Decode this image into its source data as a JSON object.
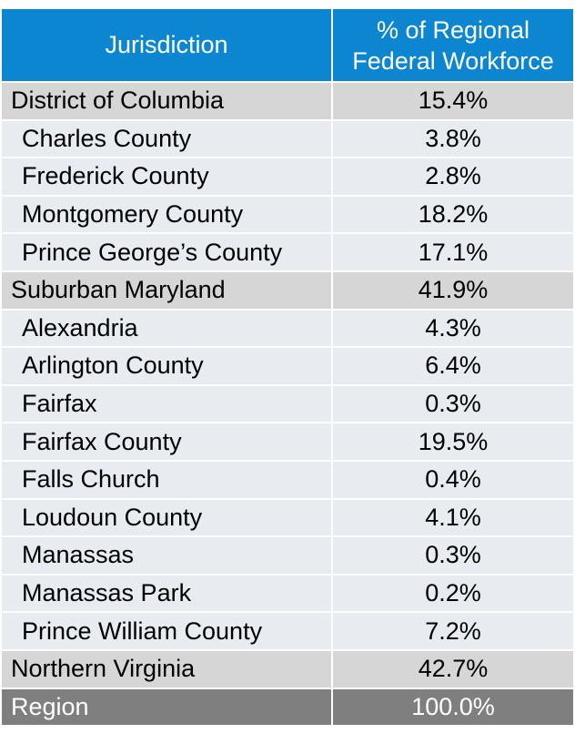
{
  "chart_data": {
    "type": "table",
    "columns": [
      "Jurisdiction",
      "% of Regional",
      "Federal Workforce"
    ],
    "rows": [
      {
        "name": "District of Columbia",
        "value": "15.4%",
        "kind": "aggregate"
      },
      {
        "name": "Charles County",
        "value": "3.8%",
        "kind": "sub"
      },
      {
        "name": "Frederick County",
        "value": "2.8%",
        "kind": "sub"
      },
      {
        "name": "Montgomery County",
        "value": "18.2%",
        "kind": "sub"
      },
      {
        "name": "Prince George’s County",
        "value": "17.1%",
        "kind": "sub"
      },
      {
        "name": "Suburban Maryland",
        "value": "41.9%",
        "kind": "aggregate"
      },
      {
        "name": "Alexandria",
        "value": "4.3%",
        "kind": "sub"
      },
      {
        "name": "Arlington County",
        "value": "6.4%",
        "kind": "sub"
      },
      {
        "name": "Fairfax",
        "value": "0.3%",
        "kind": "sub"
      },
      {
        "name": "Fairfax County",
        "value": "19.5%",
        "kind": "sub"
      },
      {
        "name": "Falls Church",
        "value": "0.4%",
        "kind": "sub"
      },
      {
        "name": "Loudoun County",
        "value": "4.1%",
        "kind": "sub"
      },
      {
        "name": "Manassas",
        "value": "0.3%",
        "kind": "sub"
      },
      {
        "name": "Manassas Park",
        "value": "0.2%",
        "kind": "sub"
      },
      {
        "name": "Prince William County",
        "value": "7.2%",
        "kind": "sub"
      },
      {
        "name": "Northern Virginia",
        "value": "42.7%",
        "kind": "aggregate"
      },
      {
        "name": "Region",
        "value": "100.0%",
        "kind": "total"
      }
    ]
  },
  "colors": {
    "header_bg": "#0c86d0",
    "sub_row_bg": "#e8ebf0",
    "aggregate_row_bg": "#d6d6d6",
    "total_row_bg": "#7f7f7f"
  }
}
